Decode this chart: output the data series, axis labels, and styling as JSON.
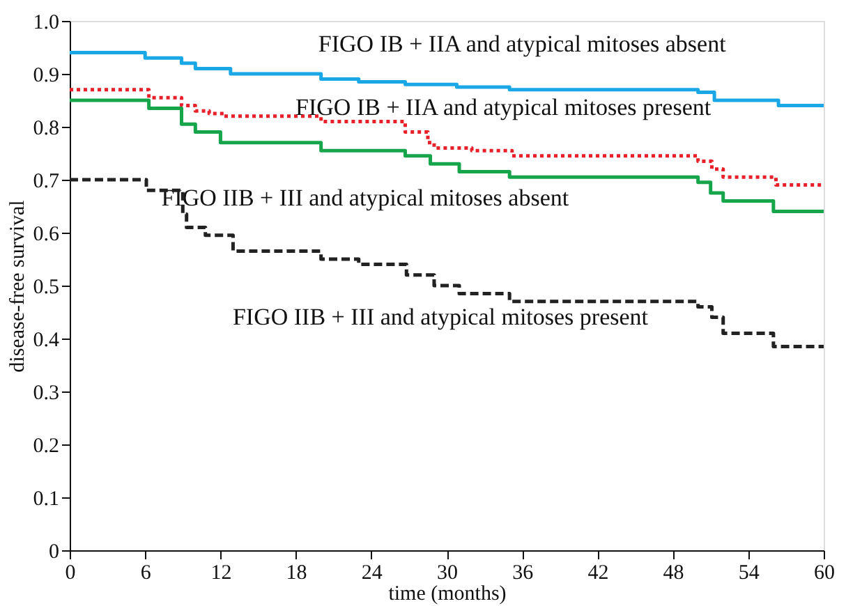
{
  "chart_data": {
    "type": "step",
    "xlabel": "time (months)",
    "ylabel": "disease-free survival",
    "xlim": [
      0,
      60
    ],
    "xticks": [
      0,
      6,
      12,
      18,
      24,
      30,
      36,
      42,
      48,
      54,
      60
    ],
    "ylim": [
      0,
      1.0
    ],
    "yticks": [
      {
        "value": 0,
        "label": "0"
      },
      {
        "value": 0.1,
        "label": "0.1"
      },
      {
        "value": 0.2,
        "label": "0.2"
      },
      {
        "value": 0.3,
        "label": "0.3"
      },
      {
        "value": 0.4,
        "label": "0.4"
      },
      {
        "value": 0.5,
        "label": "0.5"
      },
      {
        "value": 0.6,
        "label": "0.6"
      },
      {
        "value": 0.7,
        "label": "0.7"
      },
      {
        "value": 0.8,
        "label": "0.8"
      },
      {
        "value": 0.9,
        "label": "0.9"
      },
      {
        "value": 1.0,
        "label": "1.0"
      }
    ],
    "grid": false,
    "marker": "none",
    "series": [
      {
        "name": "FIGO IB + IIA and atypical mitoses absent",
        "color": "#1aa7e6",
        "line_style": "solid",
        "x": [
          0,
          6,
          8.9,
          10,
          12.8,
          20,
          23,
          26.7,
          30.8,
          35,
          50,
          51.3,
          56.4,
          60
        ],
        "values": [
          0.94,
          0.93,
          0.92,
          0.91,
          0.9,
          0.89,
          0.885,
          0.88,
          0.875,
          0.87,
          0.865,
          0.85,
          0.84,
          0.84
        ]
      },
      {
        "name": "FIGO IB + IIA and atypical mitoses present",
        "color": "#e8202a",
        "line_style": "dotted",
        "x": [
          0,
          6.3,
          8.9,
          10,
          11.1,
          12.3,
          20,
          26.7,
          28.5,
          29,
          32,
          35.2,
          50,
          51.1,
          52,
          56.2,
          60
        ],
        "values": [
          0.87,
          0.855,
          0.84,
          0.83,
          0.825,
          0.82,
          0.81,
          0.79,
          0.77,
          0.76,
          0.755,
          0.745,
          0.735,
          0.72,
          0.705,
          0.69,
          0.69
        ]
      },
      {
        "name": "FIGO IIB + III and atypical mitoses absent",
        "color": "#17a54b",
        "line_style": "solid",
        "x": [
          0,
          6.3,
          8.9,
          10,
          12,
          20,
          26.7,
          28.7,
          31,
          35,
          50,
          51,
          52,
          56,
          60
        ],
        "values": [
          0.85,
          0.835,
          0.805,
          0.79,
          0.77,
          0.755,
          0.745,
          0.73,
          0.715,
          0.705,
          0.695,
          0.675,
          0.66,
          0.64,
          0.64
        ]
      },
      {
        "name": "FIGO IIB + III and atypical mitoses present",
        "color": "#222222",
        "line_style": "dashed",
        "x": [
          0,
          6.1,
          9,
          9.3,
          10.8,
          13,
          20,
          23,
          26.8,
          29,
          31,
          35,
          50,
          51.1,
          52,
          56,
          60
        ],
        "values": [
          0.7,
          0.68,
          0.635,
          0.61,
          0.595,
          0.565,
          0.55,
          0.54,
          0.52,
          0.5,
          0.485,
          0.47,
          0.46,
          0.44,
          0.41,
          0.385,
          0.385
        ]
      }
    ]
  }
}
